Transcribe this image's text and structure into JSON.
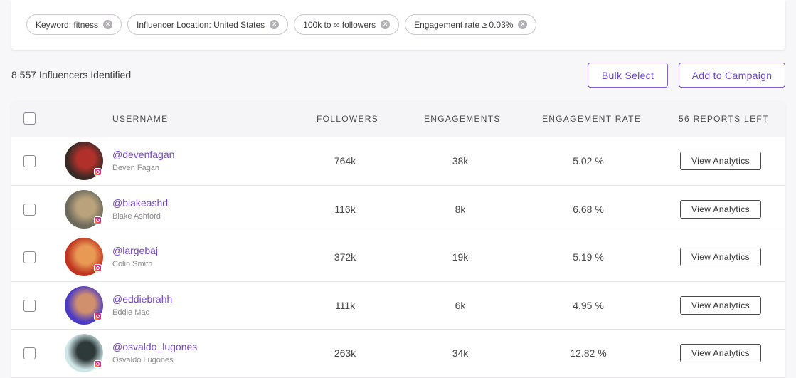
{
  "filters": [
    {
      "label": "Keyword: fitness"
    },
    {
      "label": "Influencer Location: United States"
    },
    {
      "label": "100k to ∞ followers"
    },
    {
      "label": "Engagement rate ≥ 0.03%"
    }
  ],
  "remove_glyph": "×",
  "summary": {
    "count_text": "8 557 Influencers Identified"
  },
  "actions": {
    "bulk_select": "Bulk Select",
    "add_to_campaign": "Add to Campaign"
  },
  "table": {
    "headers": {
      "username": "USERNAME",
      "followers": "FOLLOWERS",
      "engagements": "ENGAGEMENTS",
      "engagement_rate": "ENGAGEMENT RATE",
      "reports_left": "56 REPORTS LEFT"
    },
    "view_label": "View Analytics",
    "rows": [
      {
        "handle": "@devenfagan",
        "name": "Deven Fagan",
        "followers": "764k",
        "engagements": "38k",
        "rate": "5.02 %",
        "avatar_color": "#3a2a26",
        "avatar_accent": "#b0302a"
      },
      {
        "handle": "@blakeashd",
        "name": "Blake Ashford",
        "followers": "116k",
        "engagements": "8k",
        "rate": "6.68 %",
        "avatar_color": "#6d6a5c",
        "avatar_accent": "#b9a27c"
      },
      {
        "handle": "@largebaj",
        "name": "Colin Smith",
        "followers": "372k",
        "engagements": "19k",
        "rate": "5.19 %",
        "avatar_color": "#c0351f",
        "avatar_accent": "#e89a55"
      },
      {
        "handle": "@eddiebrahh",
        "name": "Eddie Mac",
        "followers": "111k",
        "engagements": "6k",
        "rate": "4.95 %",
        "avatar_color": "#4a3ac4",
        "avatar_accent": "#d08f6d"
      },
      {
        "handle": "@osvaldo_lugones",
        "name": "Osvaldo Lugones",
        "followers": "263k",
        "engagements": "34k",
        "rate": "12.82 %",
        "avatar_color": "#cfe6e8",
        "avatar_accent": "#2e3a3a"
      }
    ]
  }
}
